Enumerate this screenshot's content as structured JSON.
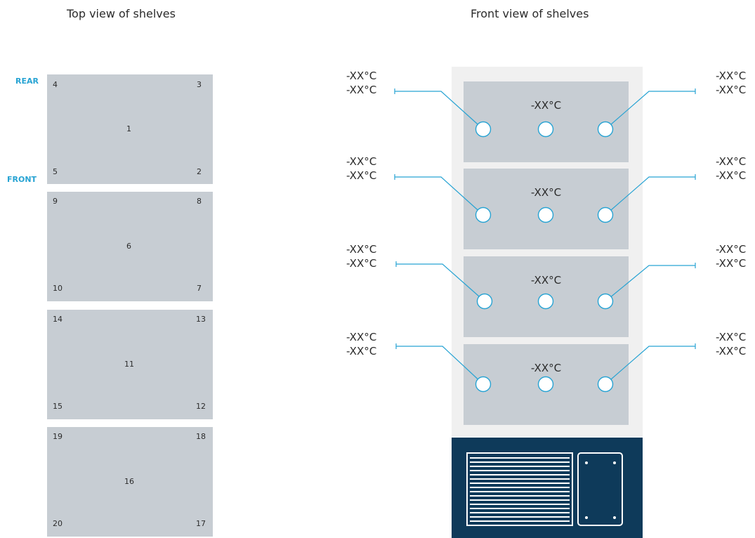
{
  "top_view": {
    "title": "Top view of shelves",
    "rear_label": "REAR",
    "front_label": "FRONT",
    "shelves": [
      {
        "tl": "4",
        "tr": "3",
        "center": "1",
        "bl": "5",
        "br": "2"
      },
      {
        "tl": "9",
        "tr": "8",
        "center": "6",
        "bl": "10",
        "br": "7"
      },
      {
        "tl": "14",
        "tr": "13",
        "center": "11",
        "bl": "15",
        "br": "12"
      },
      {
        "tl": "19",
        "tr": "18",
        "center": "16",
        "bl": "20",
        "br": "17"
      }
    ]
  },
  "front_view": {
    "title": "Front view of shelves",
    "shelves": [
      {
        "center_temp": "-XX°C",
        "left_temps": [
          "-XX°C",
          "-XX°C"
        ],
        "right_temps": [
          "-XX°C",
          "-XX°C"
        ]
      },
      {
        "center_temp": "-XX°C",
        "left_temps": [
          "-XX°C",
          "-XX°C"
        ],
        "right_temps": [
          "-XX°C",
          "-XX°C"
        ]
      },
      {
        "center_temp": "-XX°C",
        "left_temps": [
          "-XX°C",
          "-XX°C"
        ],
        "right_temps": [
          "-XX°C",
          "-XX°C"
        ]
      },
      {
        "center_temp": "-XX°C",
        "left_temps": [
          "-XX°C",
          "-XX°C"
        ],
        "right_temps": [
          "-XX°C",
          "-XX°C"
        ]
      }
    ]
  },
  "colors": {
    "shelf": "#c7cdd3",
    "accent": "#27a3d3",
    "base": "#0e3a5a",
    "panel": "#f0f0f0"
  }
}
